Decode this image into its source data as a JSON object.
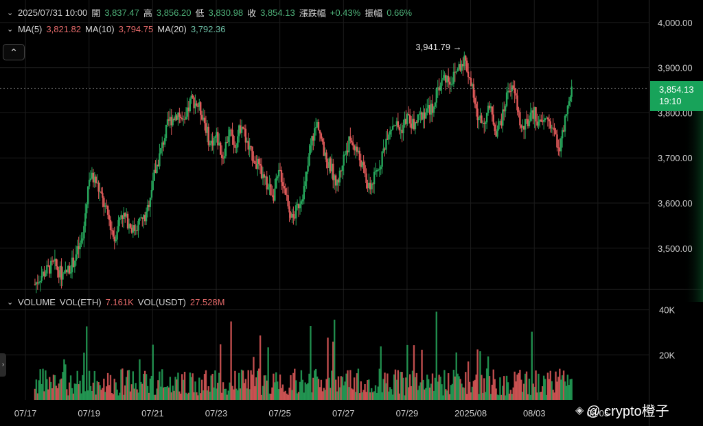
{
  "header": {
    "datetime": "2025/07/31 10:00",
    "open_label": "開",
    "open": "3,837.47",
    "high_label": "高",
    "high": "3,856.20",
    "low_label": "低",
    "low": "3,830.98",
    "close_label": "收",
    "close": "3,854.13",
    "change_label": "漲跌幅",
    "change": "+0.43%",
    "amplitude_label": "振幅",
    "amplitude": "0.66%"
  },
  "ma": {
    "ma5_label": "MA(5)",
    "ma5": "3,821.82",
    "ma10_label": "MA(10)",
    "ma10": "3,794.75",
    "ma20_label": "MA(20)",
    "ma20": "3,792.36"
  },
  "volume": {
    "label": "VOLUME",
    "eth_label": "VOL(ETH)",
    "eth": "7.161K",
    "usdt_label": "VOL(USDT)",
    "usdt": "27.528M"
  },
  "current_price": {
    "price": "3,854.13",
    "countdown": "19:10"
  },
  "watermark": {
    "text": "@ crypto橙子"
  },
  "colors": {
    "up": "#26a65b",
    "down": "#e05a5a",
    "background": "#000000",
    "grid": "#1c1c1c"
  },
  "icons": {
    "collapse": "chevron-up-icon",
    "watermark": "binance-logo-icon"
  },
  "chart_data": {
    "type": "candlestick",
    "y_ticks": [
      "4,000.00",
      "3,900.00",
      "3,800.00",
      "3,700.00",
      "3,600.00",
      "3,500.00"
    ],
    "y_tick_values": [
      4000,
      3900,
      3800,
      3700,
      3600,
      3500
    ],
    "ylim": [
      3410,
      4050
    ],
    "volume_ticks": [
      "40K",
      "20K"
    ],
    "volume_tick_values": [
      40000,
      20000
    ],
    "volume_ylim": [
      0,
      49000
    ],
    "x_ticks": [
      "07/17",
      "07/19",
      "07/21",
      "07/23",
      "07/25",
      "07/27",
      "07/29",
      "2025/08",
      "08/03",
      "08/05"
    ],
    "x_tick_times": [
      0,
      2,
      4,
      6,
      8,
      10,
      12,
      14,
      16,
      18
    ],
    "x_range_days": [
      -0.8,
      19.6
    ],
    "annotation": {
      "text": "3,941.79 →",
      "value": 3941.79
    },
    "last_price": 3854.13,
    "price_path": [
      [
        0.3,
        3420
      ],
      [
        0.5,
        3440
      ],
      [
        0.9,
        3465
      ],
      [
        1.2,
        3435
      ],
      [
        1.5,
        3470
      ],
      [
        1.8,
        3520
      ],
      [
        2.0,
        3660
      ],
      [
        2.2,
        3650
      ],
      [
        2.4,
        3610
      ],
      [
        2.6,
        3570
      ],
      [
        2.8,
        3520
      ],
      [
        3.0,
        3580
      ],
      [
        3.2,
        3560
      ],
      [
        3.4,
        3540
      ],
      [
        3.6,
        3560
      ],
      [
        3.8,
        3570
      ],
      [
        4.0,
        3650
      ],
      [
        4.2,
        3700
      ],
      [
        4.5,
        3780
      ],
      [
        4.8,
        3800
      ],
      [
        5.0,
        3770
      ],
      [
        5.2,
        3830
      ],
      [
        5.4,
        3820
      ],
      [
        5.6,
        3790
      ],
      [
        5.8,
        3730
      ],
      [
        6.0,
        3750
      ],
      [
        6.2,
        3700
      ],
      [
        6.4,
        3760
      ],
      [
        6.6,
        3730
      ],
      [
        6.8,
        3780
      ],
      [
        7.0,
        3720
      ],
      [
        7.2,
        3700
      ],
      [
        7.5,
        3650
      ],
      [
        7.8,
        3620
      ],
      [
        8.0,
        3670
      ],
      [
        8.2,
        3620
      ],
      [
        8.4,
        3560
      ],
      [
        8.6,
        3600
      ],
      [
        8.8,
        3640
      ],
      [
        9.0,
        3740
      ],
      [
        9.2,
        3780
      ],
      [
        9.4,
        3700
      ],
      [
        9.6,
        3680
      ],
      [
        9.8,
        3640
      ],
      [
        10.0,
        3700
      ],
      [
        10.2,
        3740
      ],
      [
        10.4,
        3720
      ],
      [
        10.6,
        3680
      ],
      [
        10.8,
        3630
      ],
      [
        11.0,
        3660
      ],
      [
        11.2,
        3700
      ],
      [
        11.4,
        3760
      ],
      [
        11.6,
        3780
      ],
      [
        11.8,
        3760
      ],
      [
        12.0,
        3790
      ],
      [
        12.2,
        3770
      ],
      [
        12.5,
        3800
      ],
      [
        12.8,
        3810
      ],
      [
        13.0,
        3860
      ],
      [
        13.2,
        3880
      ],
      [
        13.4,
        3870
      ],
      [
        13.6,
        3900
      ],
      [
        13.8,
        3920
      ],
      [
        14.0,
        3870
      ],
      [
        14.2,
        3790
      ],
      [
        14.4,
        3780
      ],
      [
        14.6,
        3810
      ],
      [
        14.8,
        3760
      ],
      [
        15.0,
        3790
      ],
      [
        15.2,
        3860
      ],
      [
        15.4,
        3840
      ],
      [
        15.6,
        3760
      ],
      [
        15.8,
        3780
      ],
      [
        16.0,
        3800
      ],
      [
        16.2,
        3770
      ],
      [
        16.4,
        3790
      ],
      [
        16.6,
        3760
      ],
      [
        16.8,
        3720
      ],
      [
        17.0,
        3790
      ],
      [
        17.2,
        3854
      ]
    ]
  }
}
